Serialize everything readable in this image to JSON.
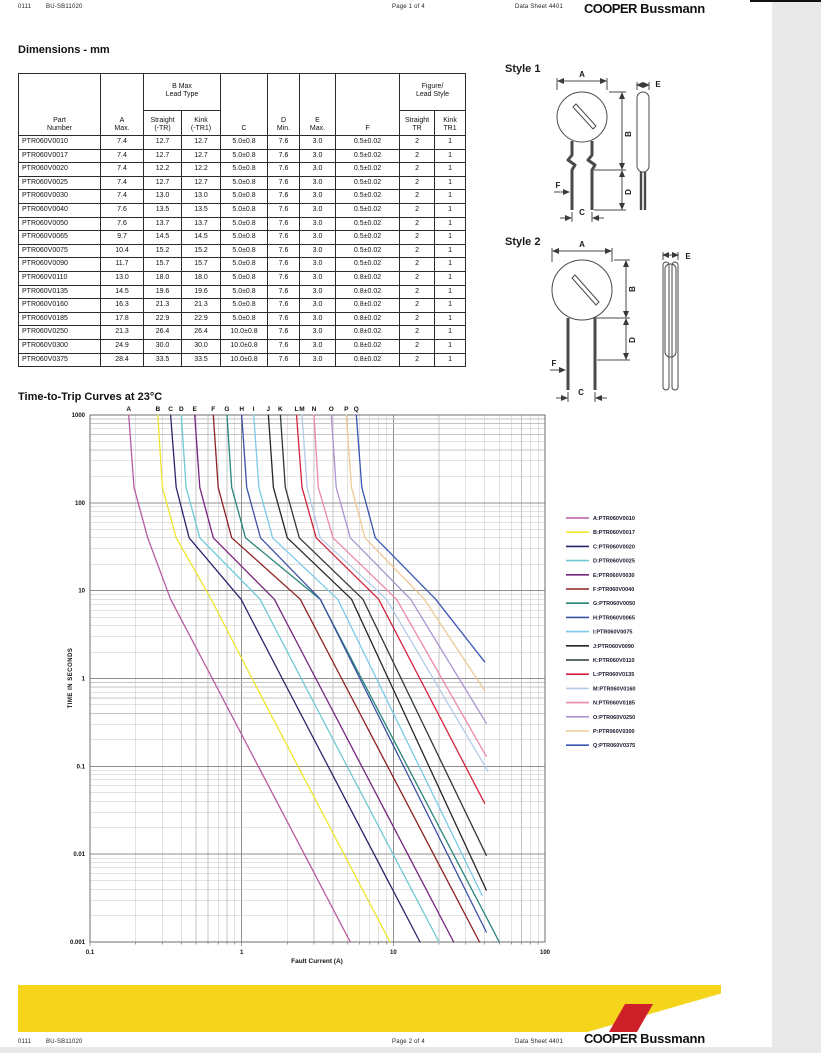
{
  "header": {
    "code": "0111",
    "doc": "BU-SB11020",
    "page": "Page 1 of 4",
    "sheet": "Data Sheet 4401",
    "brand_bold": "COOPER",
    "brand_reg": "Bussmann"
  },
  "footer": {
    "code": "0111",
    "doc": "BU-SB11020",
    "page": "Page 2 of 4",
    "sheet": "Data Sheet 4401",
    "brand_bold": "COOPER",
    "brand_reg": "Bussmann"
  },
  "sections": {
    "dimensions_title": "Dimensions - mm",
    "chart_title": "Time-to-Trip Curves at 23°C"
  },
  "diagrams": {
    "style1_label": "Style 1",
    "style2_label": "Style 2",
    "letters": {
      "a": "A",
      "b": "B",
      "c": "C",
      "d": "D",
      "e": "E",
      "f": "F"
    }
  },
  "table": {
    "header": {
      "part": [
        "Part",
        "Number"
      ],
      "a": [
        "A",
        "Max."
      ],
      "bmax_group": [
        "B Max",
        "Lead Type"
      ],
      "straight_tr": [
        "Straight",
        "(-TR)"
      ],
      "kink_tr1": [
        "Kink",
        "(-TR1)"
      ],
      "c": [
        "C"
      ],
      "d": [
        "D",
        "Min."
      ],
      "e": [
        "E",
        "Max."
      ],
      "f": [
        "F"
      ],
      "figure_group": [
        "Figure/",
        "Lead Style"
      ],
      "fig_straight": [
        "Straight",
        "TR"
      ],
      "fig_kink": [
        "Kink",
        "TR1"
      ]
    },
    "rows": [
      [
        "PTR060V0010",
        "7.4",
        "12.7",
        "12.7",
        "5.0±0.8",
        "7.6",
        "3.0",
        "0.5±0.02",
        "2",
        "1"
      ],
      [
        "PTR060V0017",
        "7.4",
        "12.7",
        "12.7",
        "5.0±0.8",
        "7.6",
        "3.0",
        "0.5±0.02",
        "2",
        "1"
      ],
      [
        "PTR060V0020",
        "7.4",
        "12.2",
        "12.2",
        "5.0±0.8",
        "7.6",
        "3.0",
        "0.5±0.02",
        "2",
        "1"
      ],
      [
        "PTR060V0025",
        "7.4",
        "12.7",
        "12.7",
        "5.0±0.8",
        "7.6",
        "3.0",
        "0.5±0.02",
        "2",
        "1"
      ],
      [
        "PTR060V0030",
        "7.4",
        "13.0",
        "13.0",
        "5.0±0.8",
        "7.6",
        "3.0",
        "0.5±0.02",
        "2",
        "1"
      ],
      [
        "PTR060V0040",
        "7.6",
        "13.5",
        "13.5",
        "5.0±0.8",
        "7.6",
        "3.0",
        "0.5±0.02",
        "2",
        "1"
      ],
      [
        "PTR060V0050",
        "7.6",
        "13.7",
        "13.7",
        "5.0±0.8",
        "7.6",
        "3.0",
        "0.5±0.02",
        "2",
        "1"
      ],
      [
        "PTR060V0065",
        "9.7",
        "14.5",
        "14.5",
        "5.0±0.8",
        "7.6",
        "3.0",
        "0.5±0.02",
        "2",
        "1"
      ],
      [
        "PTR060V0075",
        "10.4",
        "15.2",
        "15.2",
        "5.0±0.8",
        "7.6",
        "3.0",
        "0.5±0.02",
        "2",
        "1"
      ],
      [
        "PTR060V0090",
        "11.7",
        "15.7",
        "15.7",
        "5.0±0.8",
        "7.6",
        "3.0",
        "0.5±0.02",
        "2",
        "1"
      ],
      [
        "PTR060V0110",
        "13.0",
        "18.0",
        "18.0",
        "5.0±0.8",
        "7.6",
        "3.0",
        "0.8±0.02",
        "2",
        "1"
      ],
      [
        "PTR060V0135",
        "14.5",
        "19.6",
        "19.6",
        "5.0±0.8",
        "7.6",
        "3.0",
        "0.8±0.02",
        "2",
        "1"
      ],
      [
        "PTR060V0160",
        "16.3",
        "21.3",
        "21.3",
        "5.0±0.8",
        "7.6",
        "3.0",
        "0.8±0.02",
        "2",
        "1"
      ],
      [
        "PTR060V0185",
        "17.8",
        "22.9",
        "22.9",
        "5.0±0.8",
        "7.6",
        "3.0",
        "0.8±0.02",
        "2",
        "1"
      ],
      [
        "PTR060V0250",
        "21.3",
        "26.4",
        "26.4",
        "10.0±0.8",
        "7.6",
        "3.0",
        "0.8±0.02",
        "2",
        "1"
      ],
      [
        "PTR060V0300",
        "24.9",
        "30.0",
        "30.0",
        "10.0±0.8",
        "7.6",
        "3.0",
        "0.8±0.02",
        "2",
        "1"
      ],
      [
        "PTR060V0375",
        "28.4",
        "33.5",
        "33.5",
        "10.0±0.8",
        "7.6",
        "3.0",
        "0.8±0.02",
        "2",
        "1"
      ]
    ]
  },
  "chart_data": {
    "type": "line",
    "title": "Time-to-Trip Curves at 23°C",
    "xlabel": "Fault Current (A)",
    "ylabel": "TIME IN SECONDS",
    "x_scale": "log",
    "y_scale": "log",
    "xlim": [
      0.1,
      100
    ],
    "ylim": [
      0.001,
      1000
    ],
    "x_ticks": [
      "0.1",
      "1",
      "10",
      "100"
    ],
    "x_tick_values": [
      0.1,
      1,
      10,
      100
    ],
    "y_ticks": [
      "1000",
      "100",
      "10",
      "1",
      "0.1",
      "0.01",
      "0.001"
    ],
    "y_tick_values": [
      1000,
      100,
      10,
      1,
      0.1,
      0.01,
      0.001
    ],
    "grid": "log major+minor",
    "legend_position": "right",
    "curves": [
      {
        "letter": "A",
        "label": "A:PTR060V0010",
        "color": "#B75AA0",
        "points": [
          [
            0.18,
            1000
          ],
          [
            0.195,
            150
          ],
          [
            0.24,
            40
          ],
          [
            0.34,
            8
          ],
          [
            0.64,
            1
          ],
          [
            5.2,
            0.001
          ]
        ]
      },
      {
        "letter": "B",
        "label": "B:PTR060V0017",
        "color": "#EFE52D",
        "points": [
          [
            0.28,
            1000
          ],
          [
            0.3,
            150
          ],
          [
            0.37,
            40
          ],
          [
            0.63,
            8
          ],
          [
            1.17,
            1
          ],
          [
            9.5,
            0.001
          ]
        ]
      },
      {
        "letter": "C",
        "label": "C:PTR060V0020",
        "color": "#29276B",
        "points": [
          [
            0.34,
            1000
          ],
          [
            0.37,
            150
          ],
          [
            0.45,
            40
          ],
          [
            0.99,
            8
          ],
          [
            1.85,
            1
          ],
          [
            15,
            0.001
          ]
        ]
      },
      {
        "letter": "D",
        "label": "D:PTR060V0025",
        "color": "#6FC9D4",
        "points": [
          [
            0.4,
            1000
          ],
          [
            0.43,
            150
          ],
          [
            0.53,
            40
          ],
          [
            1.32,
            8
          ],
          [
            2.47,
            1
          ],
          [
            20,
            0.001
          ]
        ]
      },
      {
        "letter": "E",
        "label": "E:PTR060V0030",
        "color": "#76257F",
        "points": [
          [
            0.49,
            1000
          ],
          [
            0.53,
            150
          ],
          [
            0.65,
            40
          ],
          [
            1.64,
            8
          ],
          [
            3.08,
            1
          ],
          [
            25,
            0.001
          ]
        ]
      },
      {
        "letter": "F",
        "label": "F:PTR060V0040",
        "color": "#8C2022",
        "points": [
          [
            0.65,
            1000
          ],
          [
            0.7,
            150
          ],
          [
            0.86,
            40
          ],
          [
            2.43,
            8
          ],
          [
            4.56,
            1
          ],
          [
            37,
            0.001
          ]
        ]
      },
      {
        "letter": "G",
        "label": "G:PTR060V0050",
        "color": "#27857A",
        "points": [
          [
            0.8,
            1000
          ],
          [
            0.86,
            150
          ],
          [
            1.06,
            40
          ],
          [
            3.29,
            8
          ],
          [
            6.17,
            1
          ],
          [
            50,
            0.001
          ]
        ]
      },
      {
        "letter": "H",
        "label": "H:PTR060V0065",
        "color": "#3D52A3",
        "points": [
          [
            1.0,
            1000
          ],
          [
            1.08,
            150
          ],
          [
            1.33,
            40
          ],
          [
            3.3,
            8
          ],
          [
            41,
            0.0013
          ]
        ]
      },
      {
        "letter": "I",
        "label": "I:PTR060V0075",
        "color": "#7BC9E8",
        "points": [
          [
            1.2,
            1000
          ],
          [
            1.3,
            150
          ],
          [
            1.6,
            40
          ],
          [
            4.3,
            8
          ],
          [
            38.5,
            0.0034
          ]
        ]
      },
      {
        "letter": "J",
        "label": "J:PTR060V0090",
        "color": "#262626",
        "points": [
          [
            1.5,
            1000
          ],
          [
            1.62,
            150
          ],
          [
            2.0,
            40
          ],
          [
            5.3,
            8
          ],
          [
            41,
            0.0039
          ]
        ]
      },
      {
        "letter": "K",
        "label": "K:PTR060V0110",
        "color": "#2F3B33",
        "points": [
          [
            1.8,
            1000
          ],
          [
            1.94,
            150
          ],
          [
            2.4,
            40
          ],
          [
            6.3,
            8
          ],
          [
            41,
            0.0097
          ]
        ]
      },
      {
        "letter": "L",
        "label": "L:PTR060V0135",
        "color": "#D5223E",
        "points": [
          [
            2.3,
            1000
          ],
          [
            2.5,
            150
          ],
          [
            3.1,
            40
          ],
          [
            8.0,
            8
          ],
          [
            40,
            0.038
          ]
        ]
      },
      {
        "letter": "M",
        "label": "M:PTR060V0160",
        "color": "#B3CBE8",
        "points": [
          [
            2.5,
            1000
          ],
          [
            2.7,
            150
          ],
          [
            3.3,
            40
          ],
          [
            9.0,
            8
          ],
          [
            42,
            0.088
          ]
        ]
      },
      {
        "letter": "N",
        "label": "N:PTR060V0185",
        "color": "#EC87AC",
        "points": [
          [
            3.0,
            1000
          ],
          [
            3.2,
            150
          ],
          [
            4.0,
            40
          ],
          [
            10.5,
            8
          ],
          [
            41,
            0.13
          ]
        ]
      },
      {
        "letter": "O",
        "label": "O:PTR060V0250",
        "color": "#AC92D2",
        "points": [
          [
            3.9,
            1000
          ],
          [
            4.2,
            150
          ],
          [
            5.2,
            40
          ],
          [
            13,
            8
          ],
          [
            41,
            0.31
          ]
        ]
      },
      {
        "letter": "P",
        "label": "P:PTR060V0300",
        "color": "#EFC893",
        "points": [
          [
            4.9,
            1000
          ],
          [
            5.3,
            150
          ],
          [
            6.5,
            40
          ],
          [
            16,
            8
          ],
          [
            40,
            0.73
          ]
        ]
      },
      {
        "letter": "Q",
        "label": "Q:PTR060V0375",
        "color": "#3A55B4",
        "points": [
          [
            5.7,
            1000
          ],
          [
            6.2,
            150
          ],
          [
            7.6,
            40
          ],
          [
            19,
            8
          ],
          [
            40,
            1.55
          ]
        ]
      }
    ]
  },
  "colors": {
    "band_yellow": "#F5D41C",
    "logo_red": "#CE2029",
    "grid_major": "#8f8f8f",
    "grid_minor": "#c4c4c4"
  }
}
